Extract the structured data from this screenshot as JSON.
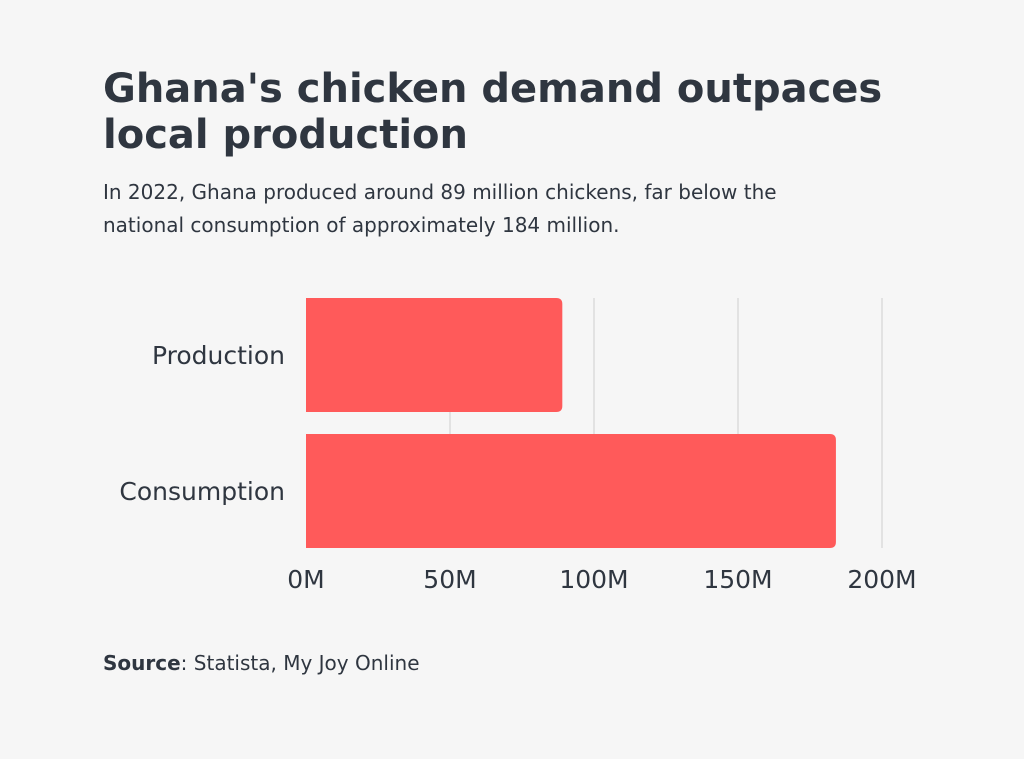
{
  "title": "Ghana's chicken demand outpaces local production",
  "subtitle": "In 2022, Ghana produced around 89 million chickens, far below the national consumption of approximately 184 million.",
  "source": {
    "label": "Source",
    "separator": ": ",
    "text": "Statista, My Joy Online"
  },
  "colors": {
    "background": "#f6f6f6",
    "bar": "#ff5a5a",
    "text": "#2f3640",
    "grid": "#cfcfcf"
  },
  "chart_data": {
    "type": "bar",
    "orientation": "horizontal",
    "categories": [
      "Production",
      "Consumption"
    ],
    "values": [
      89,
      184
    ],
    "value_unit": "million",
    "xlim": [
      0,
      200
    ],
    "x_ticks": [
      0,
      50,
      100,
      150,
      200
    ],
    "x_tick_labels": [
      "0M",
      "50M",
      "100M",
      "150M",
      "200M"
    ],
    "grid": true,
    "legend": "none"
  }
}
